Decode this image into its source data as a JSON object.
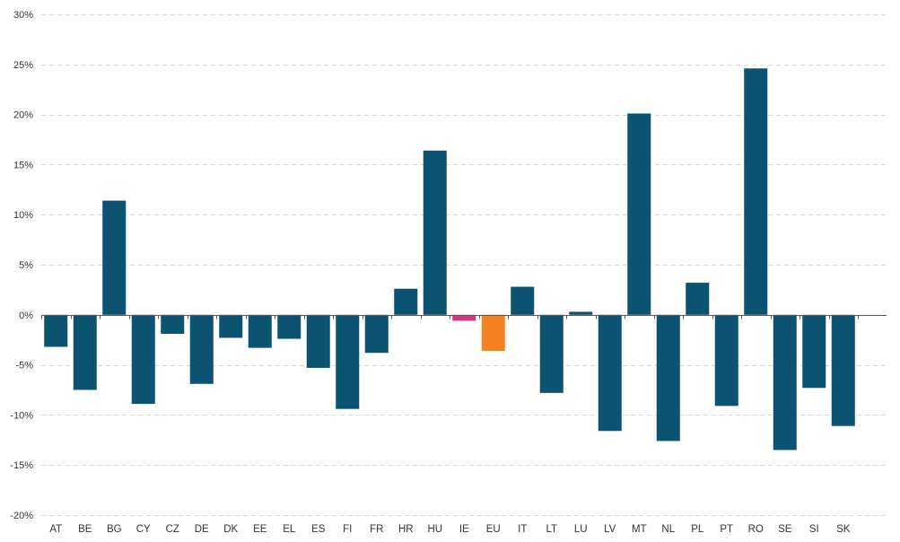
{
  "chart_data": {
    "type": "bar",
    "title": "",
    "xlabel": "",
    "ylabel": "",
    "ylim": [
      -20,
      30
    ],
    "yticks": [
      -20,
      -15,
      -10,
      -5,
      0,
      5,
      10,
      15,
      20,
      25,
      30
    ],
    "ytick_labels": [
      "-20%",
      "-15%",
      "-10%",
      "-5%",
      "0%",
      "5%",
      "10%",
      "15%",
      "20%",
      "25%",
      "30%"
    ],
    "grid": true,
    "categories": [
      "AT",
      "BE",
      "BG",
      "CY",
      "CZ",
      "DE",
      "DK",
      "EE",
      "EL",
      "ES",
      "FI",
      "FR",
      "HR",
      "HU",
      "IE",
      "EU",
      "IT",
      "LT",
      "LU",
      "LV",
      "MT",
      "NL",
      "PL",
      "PT",
      "RO",
      "SE",
      "SI",
      "SK"
    ],
    "values": [
      -3.2,
      -7.5,
      11.4,
      -8.9,
      -1.9,
      -6.9,
      -2.3,
      -3.3,
      -2.4,
      -5.3,
      -9.4,
      -3.8,
      2.6,
      16.4,
      -0.6,
      -3.6,
      2.8,
      -7.8,
      0.3,
      -11.6,
      20.1,
      -12.6,
      3.2,
      -9.1,
      24.6,
      -13.5,
      -7.3,
      -11.1
    ],
    "colors": {
      "default": "#0b5370",
      "IE": "#d63384",
      "EU": "#f58220"
    }
  }
}
